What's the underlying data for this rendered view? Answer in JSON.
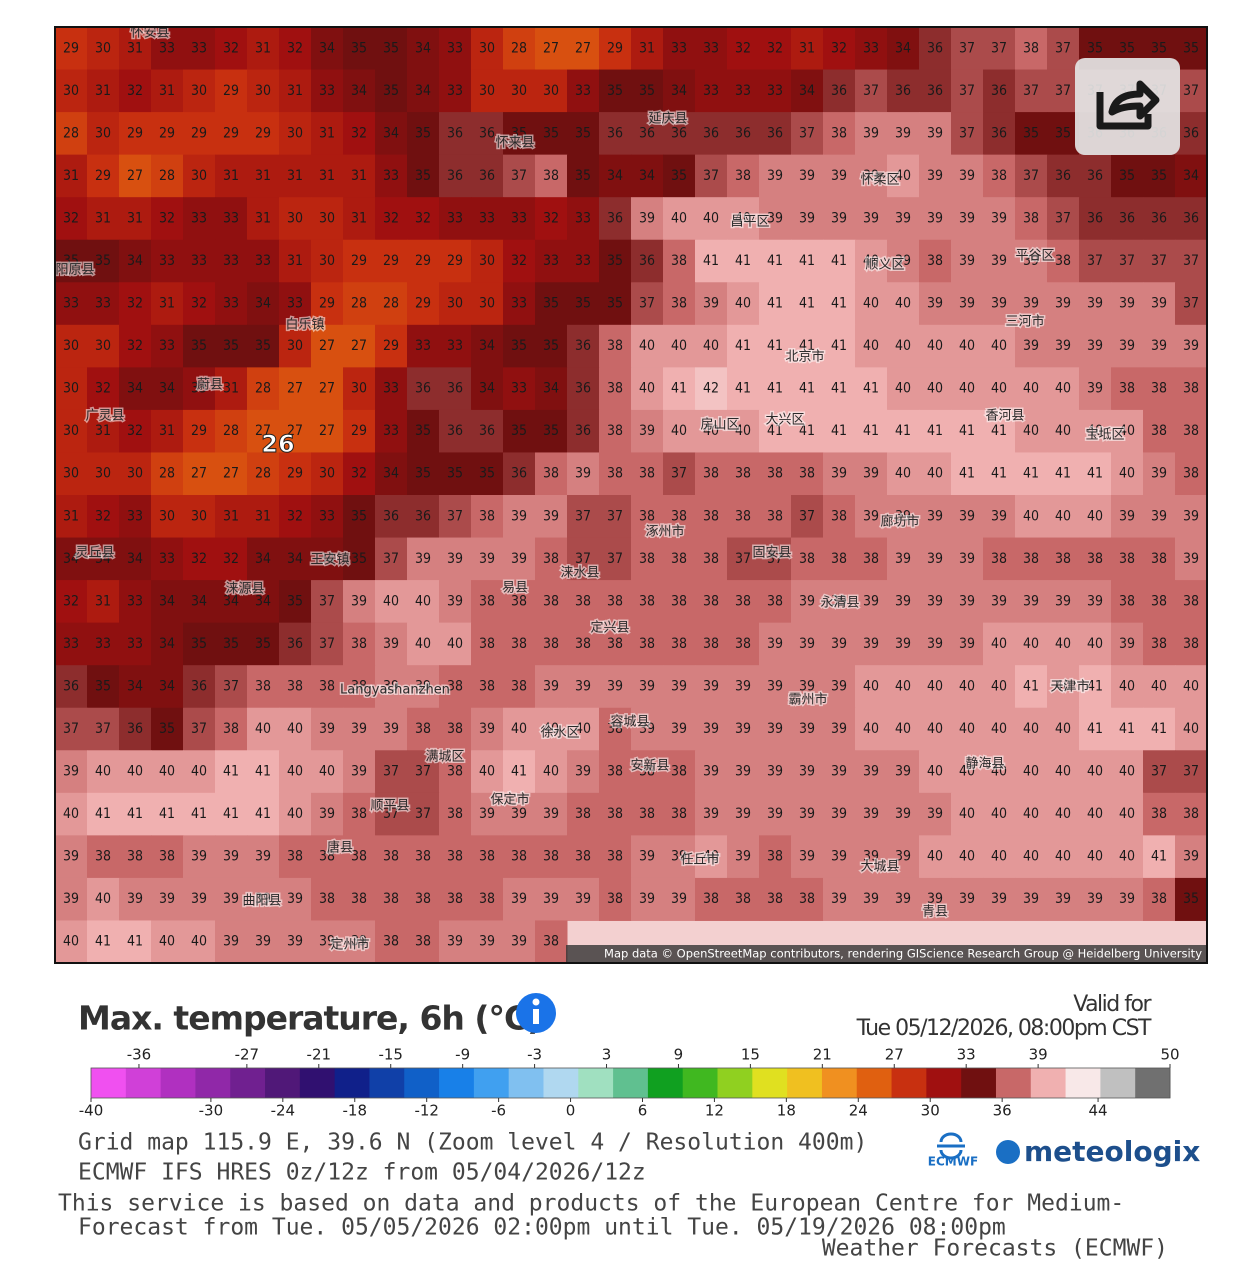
{
  "map": {
    "grid": [
      [
        29,
        30,
        31,
        33,
        33,
        32,
        31,
        32,
        34,
        35,
        35,
        34,
        33,
        30,
        28,
        27,
        27,
        29,
        31,
        33,
        33,
        32,
        32,
        31,
        32,
        33,
        34,
        36,
        37,
        37,
        38,
        37,
        35,
        35,
        35,
        35
      ],
      [
        30,
        31,
        32,
        31,
        30,
        29,
        30,
        31,
        33,
        34,
        35,
        34,
        33,
        30,
        30,
        30,
        33,
        35,
        35,
        34,
        33,
        33,
        33,
        34,
        36,
        37,
        36,
        36,
        37,
        36,
        37,
        37,
        37,
        37,
        37,
        37
      ],
      [
        28,
        30,
        29,
        29,
        29,
        29,
        29,
        30,
        31,
        32,
        34,
        35,
        36,
        36,
        35,
        35,
        35,
        36,
        36,
        36,
        36,
        36,
        36,
        37,
        38,
        39,
        39,
        39,
        37,
        36,
        35,
        35,
        36,
        36,
        36,
        36
      ],
      [
        31,
        29,
        27,
        28,
        30,
        31,
        31,
        31,
        31,
        31,
        33,
        35,
        36,
        36,
        37,
        38,
        35,
        34,
        34,
        35,
        37,
        38,
        39,
        39,
        39,
        39,
        40,
        39,
        39,
        38,
        37,
        36,
        36,
        35,
        35,
        34
      ],
      [
        32,
        31,
        31,
        32,
        33,
        33,
        31,
        30,
        30,
        31,
        32,
        32,
        33,
        33,
        33,
        32,
        33,
        36,
        39,
        40,
        40,
        40,
        39,
        39,
        39,
        39,
        39,
        39,
        39,
        39,
        38,
        37,
        36,
        36,
        36,
        36
      ],
      [
        35,
        35,
        34,
        33,
        33,
        33,
        33,
        31,
        30,
        29,
        29,
        29,
        29,
        30,
        32,
        33,
        33,
        35,
        36,
        38,
        41,
        41,
        41,
        41,
        41,
        40,
        39,
        38,
        39,
        39,
        39,
        38,
        37,
        37,
        37,
        37
      ],
      [
        33,
        33,
        32,
        31,
        32,
        33,
        34,
        33,
        29,
        28,
        28,
        29,
        30,
        30,
        33,
        35,
        35,
        35,
        37,
        38,
        39,
        40,
        41,
        41,
        41,
        40,
        40,
        39,
        39,
        39,
        39,
        39,
        39,
        39,
        39,
        37
      ],
      [
        30,
        30,
        32,
        33,
        35,
        35,
        35,
        30,
        27,
        27,
        29,
        33,
        33,
        34,
        35,
        35,
        36,
        38,
        40,
        40,
        40,
        41,
        41,
        41,
        41,
        40,
        40,
        40,
        40,
        40,
        39,
        39,
        39,
        39,
        39,
        39
      ],
      [
        30,
        32,
        34,
        34,
        33,
        31,
        28,
        27,
        27,
        30,
        33,
        36,
        36,
        34,
        33,
        34,
        36,
        38,
        40,
        41,
        42,
        41,
        41,
        41,
        41,
        41,
        40,
        40,
        40,
        40,
        40,
        40,
        39,
        38,
        38,
        38
      ],
      [
        30,
        31,
        32,
        31,
        29,
        28,
        27,
        27,
        27,
        29,
        33,
        35,
        36,
        36,
        35,
        35,
        36,
        38,
        39,
        40,
        40,
        40,
        41,
        41,
        41,
        41,
        41,
        41,
        41,
        41,
        40,
        40,
        40,
        40,
        38,
        38
      ],
      [
        30,
        30,
        30,
        28,
        27,
        27,
        28,
        29,
        30,
        32,
        34,
        35,
        35,
        35,
        36,
        38,
        39,
        38,
        38,
        37,
        38,
        38,
        38,
        38,
        39,
        39,
        40,
        40,
        41,
        41,
        41,
        41,
        41,
        40,
        39,
        38
      ],
      [
        31,
        32,
        33,
        30,
        30,
        31,
        31,
        32,
        33,
        35,
        36,
        36,
        37,
        38,
        39,
        39,
        37,
        37,
        38,
        38,
        38,
        38,
        38,
        37,
        38,
        39,
        39,
        39,
        39,
        39,
        40,
        40,
        40,
        39,
        39,
        39
      ],
      [
        34,
        34,
        34,
        33,
        32,
        32,
        34,
        34,
        34,
        35,
        37,
        39,
        39,
        39,
        39,
        38,
        37,
        37,
        38,
        38,
        38,
        37,
        37,
        38,
        38,
        38,
        39,
        39,
        39,
        38,
        38,
        38,
        38,
        38,
        38,
        39
      ],
      [
        32,
        31,
        33,
        34,
        34,
        34,
        34,
        35,
        37,
        39,
        40,
        40,
        39,
        38,
        38,
        38,
        38,
        38,
        38,
        38,
        38,
        38,
        38,
        39,
        39,
        39,
        39,
        39,
        39,
        39,
        39,
        39,
        39,
        38,
        38,
        38
      ],
      [
        33,
        33,
        33,
        34,
        35,
        35,
        35,
        36,
        37,
        38,
        39,
        40,
        40,
        38,
        38,
        38,
        38,
        38,
        38,
        38,
        38,
        38,
        39,
        39,
        39,
        39,
        39,
        39,
        39,
        40,
        40,
        40,
        40,
        39,
        38,
        38
      ],
      [
        36,
        35,
        34,
        34,
        36,
        37,
        38,
        38,
        38,
        38,
        39,
        39,
        38,
        38,
        38,
        39,
        39,
        39,
        39,
        39,
        39,
        39,
        39,
        39,
        39,
        40,
        40,
        40,
        40,
        40,
        41,
        40,
        41,
        40,
        40,
        40
      ],
      [
        37,
        37,
        36,
        35,
        37,
        38,
        40,
        40,
        39,
        39,
        39,
        38,
        38,
        39,
        40,
        40,
        40,
        38,
        39,
        39,
        39,
        39,
        39,
        39,
        39,
        40,
        40,
        40,
        40,
        40,
        40,
        40,
        41,
        41,
        41,
        40
      ],
      [
        39,
        40,
        40,
        40,
        40,
        41,
        41,
        40,
        40,
        39,
        37,
        37,
        38,
        40,
        41,
        40,
        39,
        38,
        38,
        38,
        39,
        39,
        39,
        39,
        39,
        39,
        39,
        40,
        40,
        40,
        40,
        40,
        40,
        40,
        37,
        37
      ],
      [
        40,
        41,
        41,
        41,
        41,
        41,
        41,
        40,
        39,
        38,
        37,
        37,
        38,
        39,
        39,
        39,
        38,
        38,
        38,
        38,
        39,
        39,
        39,
        39,
        39,
        39,
        39,
        39,
        40,
        40,
        40,
        40,
        40,
        40,
        38,
        38
      ],
      [
        39,
        38,
        38,
        38,
        39,
        39,
        39,
        38,
        38,
        38,
        38,
        38,
        38,
        38,
        38,
        38,
        38,
        38,
        39,
        39,
        40,
        39,
        38,
        39,
        39,
        39,
        39,
        40,
        40,
        40,
        40,
        40,
        40,
        40,
        41,
        39
      ],
      [
        39,
        40,
        39,
        39,
        39,
        39,
        39,
        39,
        38,
        38,
        38,
        38,
        38,
        38,
        39,
        39,
        39,
        38,
        39,
        39,
        38,
        38,
        38,
        38,
        39,
        39,
        39,
        39,
        39,
        39,
        39,
        39,
        39,
        39,
        38,
        35
      ],
      [
        40,
        41,
        41,
        40,
        40,
        39,
        39,
        39,
        39,
        39,
        38,
        38,
        39,
        39,
        39,
        38
      ]
    ],
    "extreme_label": 26,
    "places": [
      "怀安县",
      "延庆县",
      "怀来县",
      "怀柔区",
      "昌平区",
      "北京市",
      "大兴区",
      "房山区",
      "廊坊市",
      "固安县",
      "涿州市",
      "涞水县",
      "定兴县",
      "易县",
      "永清县",
      "保定市",
      "天津市",
      "静海县",
      "霸州市",
      "安新县",
      "容城县",
      "徐水区",
      "满城区",
      "顺平县",
      "唐县",
      "曲阳县",
      "定州市",
      "蔚县",
      "灵丘县",
      "涞源县",
      "广灵县",
      "阳原县",
      "白乐镇",
      "王安镇",
      "Langyashanzhen",
      "平谷区",
      "顺义区",
      "三河市",
      "宝坻区",
      "香河县",
      "大城县",
      "任丘市",
      "青县"
    ],
    "attribution": "Map data © OpenStreetMap contributors, rendering GIScience Research Group @ Heidelberg University"
  },
  "legend": {
    "title": "Max. temperature, 6h (°C)",
    "valid_label": "Valid for",
    "valid_time": "Tue 05/12/2026, 08:00pm CST",
    "top_ticks": [
      -36,
      -27,
      -21,
      -15,
      -9,
      -3,
      3,
      9,
      15,
      21,
      27,
      33,
      39,
      50
    ],
    "bottom_ticks": [
      -40,
      -30,
      -24,
      -18,
      -12,
      -6,
      0,
      6,
      12,
      18,
      24,
      30,
      36,
      44
    ],
    "range": [
      -40,
      50
    ],
    "colors": [
      "#f050f0",
      "#d040d8",
      "#b030c0",
      "#9028a8",
      "#702090",
      "#501878",
      "#301070",
      "#10208a",
      "#1040a8",
      "#1060c8",
      "#1880e8",
      "#40a0f0",
      "#80c0f0",
      "#b0d8f0",
      "#a0e0c0",
      "#60c090",
      "#10a020",
      "#40b820",
      "#90d020",
      "#e0e020",
      "#f0c020",
      "#f09020",
      "#e06010",
      "#c83010",
      "#a01010",
      "#701010",
      "#c86868",
      "#f0b0b0",
      "#f8e8e8",
      "#c0c0c0",
      "#707070"
    ]
  },
  "footer": {
    "grid_info": "Grid map 115.9 E, 39.6 N (Zoom level 4 / Resolution 400m)",
    "model_run": "ECMWF IFS HRES 0z/12z from 05/04/2026/12z",
    "service_note": "This service is based on data and products of the European Centre for Medium-",
    "forecast_range": "Forecast from Tue. 05/05/2026 02:00pm until Tue. 05/19/2026 08:00pm",
    "service_note_end": "Weather Forecasts (ECMWF)",
    "ecmwf_logo": "ECMWF",
    "brand": "meteologix"
  }
}
